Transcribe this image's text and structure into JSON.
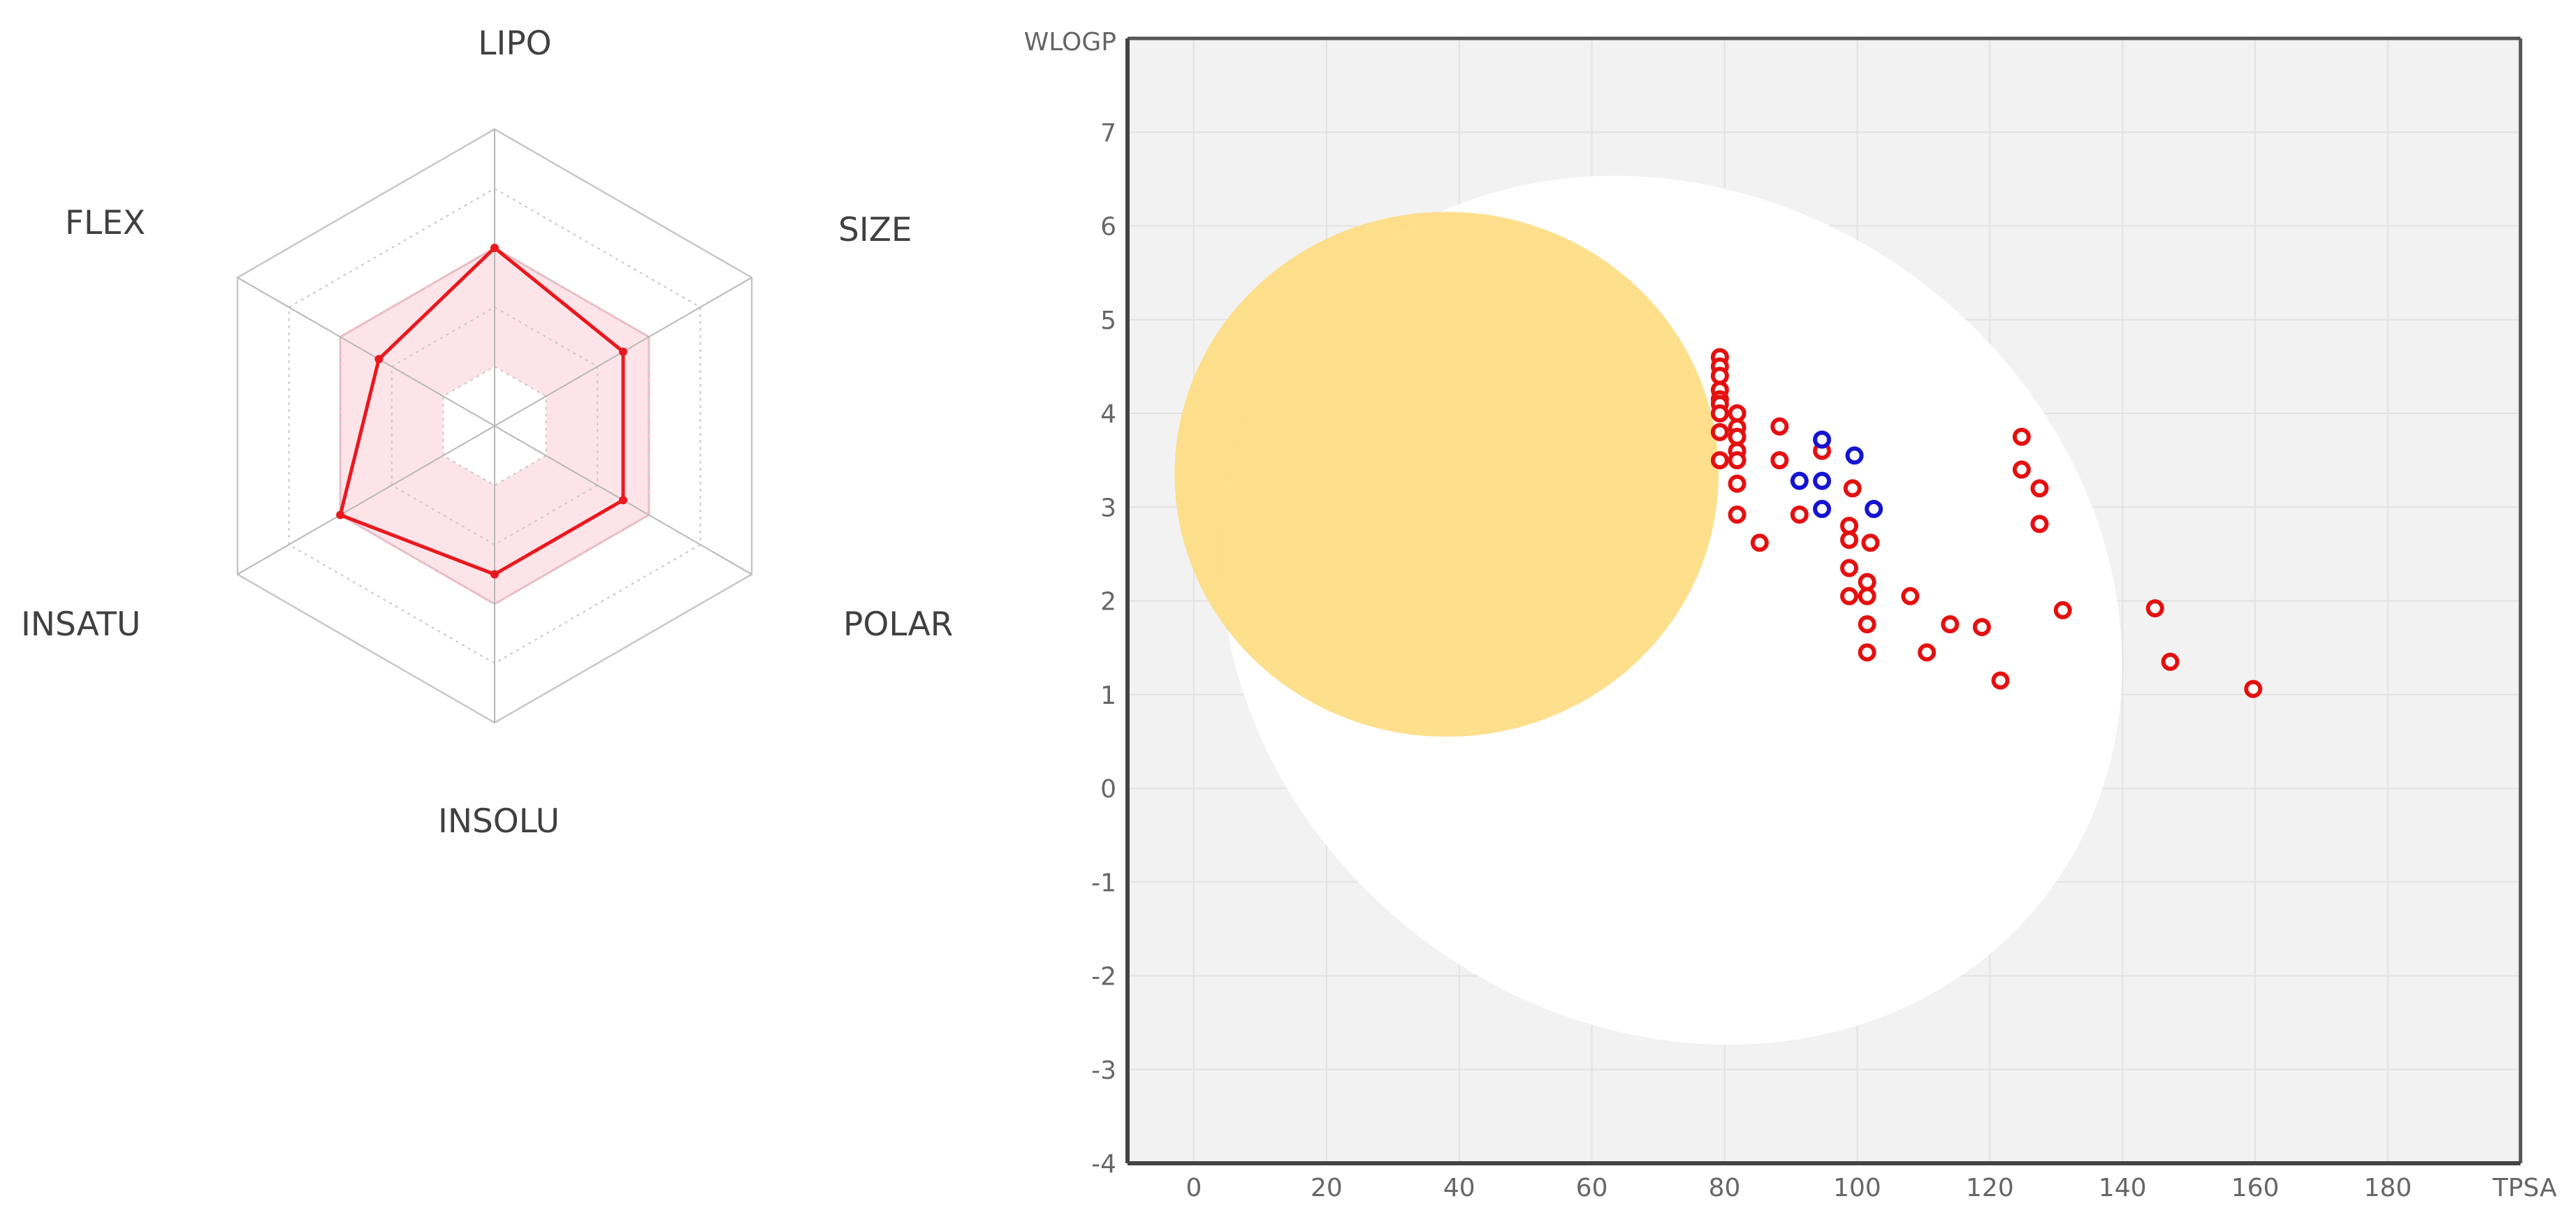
{
  "chart_data": [
    {
      "type": "radar",
      "axes": [
        "LIPO",
        "SIZE",
        "POLAR",
        "INSOLU",
        "INSATU",
        "FLEX"
      ],
      "range": [
        0,
        1
      ],
      "rings": 5,
      "optimal_range": {
        "lower": 0.2,
        "upper": 0.6
      },
      "values": [
        0.6,
        0.5,
        0.5,
        0.5,
        0.6,
        0.45
      ],
      "colors": {
        "line": "#e8191e",
        "band": "#f6b9c6",
        "grid": "#c8c8c8"
      }
    },
    {
      "type": "scatter",
      "title": "",
      "xlabel": "TPSA",
      "ylabel": "WLOGP",
      "xlim": [
        -10,
        200
      ],
      "ylim": [
        -4,
        8
      ],
      "x_ticks": [
        0,
        20,
        40,
        60,
        80,
        100,
        120,
        140,
        160,
        180
      ],
      "y_ticks": [
        -4,
        -3,
        -2,
        -1,
        0,
        1,
        2,
        3,
        4,
        5,
        6,
        7
      ],
      "regions": [
        {
          "name": "white",
          "shape": "ellipse",
          "cx": 72,
          "cy": 1.9,
          "rx": 71,
          "ry": 4.4,
          "rotation_deg": 37,
          "color": "#ffffff"
        },
        {
          "name": "yolk",
          "shape": "ellipse",
          "cx": 38.1,
          "cy": 3.35,
          "rx": 41,
          "ry": 2.8,
          "rotation_deg": 0,
          "color": "#fedc82"
        }
      ],
      "series": [
        {
          "name": "red",
          "color": "#e41010",
          "points": [
            [
              79.3,
              4.6
            ],
            [
              79.3,
              4.5
            ],
            [
              79.3,
              4.4
            ],
            [
              79.3,
              4.25
            ],
            [
              79.3,
              4.15
            ],
            [
              79.3,
              4.1
            ],
            [
              79.3,
              4.0
            ],
            [
              79.3,
              3.8
            ],
            [
              79.3,
              3.5
            ],
            [
              81.9,
              4.0
            ],
            [
              81.9,
              3.85
            ],
            [
              81.9,
              3.75
            ],
            [
              81.9,
              3.6
            ],
            [
              81.9,
              3.5
            ],
            [
              81.9,
              3.25
            ],
            [
              81.9,
              2.92
            ],
            [
              85.3,
              2.62
            ],
            [
              88.3,
              3.86
            ],
            [
              88.3,
              3.5
            ],
            [
              91.3,
              2.92
            ],
            [
              94.7,
              3.6
            ],
            [
              99.3,
              3.2
            ],
            [
              98.8,
              2.8
            ],
            [
              98.8,
              2.65
            ],
            [
              98.8,
              2.35
            ],
            [
              98.8,
              2.05
            ],
            [
              101.5,
              2.2
            ],
            [
              101.5,
              2.05
            ],
            [
              101.5,
              1.75
            ],
            [
              101.5,
              1.45
            ],
            [
              102.0,
              2.62
            ],
            [
              108.0,
              2.05
            ],
            [
              110.5,
              1.45
            ],
            [
              114.0,
              1.75
            ],
            [
              118.8,
              1.72
            ],
            [
              121.6,
              1.15
            ],
            [
              124.8,
              3.75
            ],
            [
              124.8,
              3.4
            ],
            [
              127.5,
              3.2
            ],
            [
              127.5,
              2.82
            ],
            [
              131.0,
              1.9
            ],
            [
              144.9,
              1.92
            ],
            [
              147.2,
              1.35
            ],
            [
              159.7,
              1.06
            ]
          ]
        },
        {
          "name": "blue",
          "color": "#1414d2",
          "points": [
            [
              94.7,
              3.72
            ],
            [
              94.7,
              3.28
            ],
            [
              94.7,
              2.98
            ],
            [
              91.3,
              3.28
            ],
            [
              99.6,
              3.55
            ],
            [
              102.5,
              2.98
            ]
          ]
        }
      ]
    }
  ]
}
